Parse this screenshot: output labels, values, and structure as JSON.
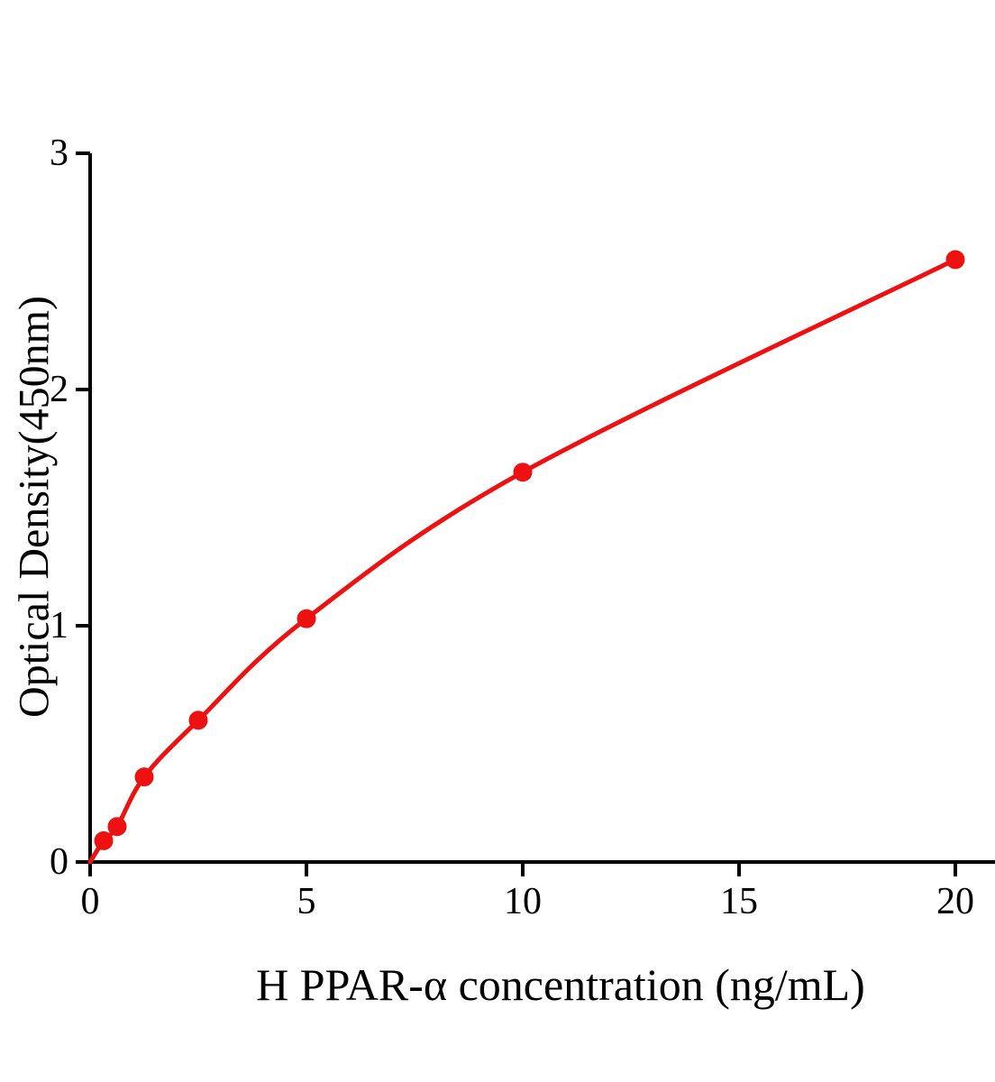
{
  "chart_data": {
    "type": "line",
    "title": "",
    "xlabel": "H PPAR-α concentration (ng/mL)",
    "ylabel": "Optical Density(450nm)",
    "x_ticks": [
      "0",
      "5",
      "10",
      "15",
      "20"
    ],
    "x_tick_values": [
      0,
      5,
      10,
      15,
      20
    ],
    "y_ticks": [
      "0",
      "1",
      "2",
      "3"
    ],
    "y_tick_values": [
      0,
      1,
      2,
      3
    ],
    "xlim": [
      0,
      20.9
    ],
    "ylim": [
      0,
      3
    ],
    "grid": false,
    "legend": "none",
    "curve_start": {
      "x": 0,
      "y": 0
    },
    "series": [
      {
        "color": "#ee1111",
        "marker": "circle",
        "x": [
          0.313,
          0.625,
          1.25,
          2.5,
          5,
          10,
          20
        ],
        "y": [
          0.09,
          0.15,
          0.36,
          0.6,
          1.03,
          1.65,
          2.55
        ]
      }
    ],
    "axis_color": "#000000"
  }
}
